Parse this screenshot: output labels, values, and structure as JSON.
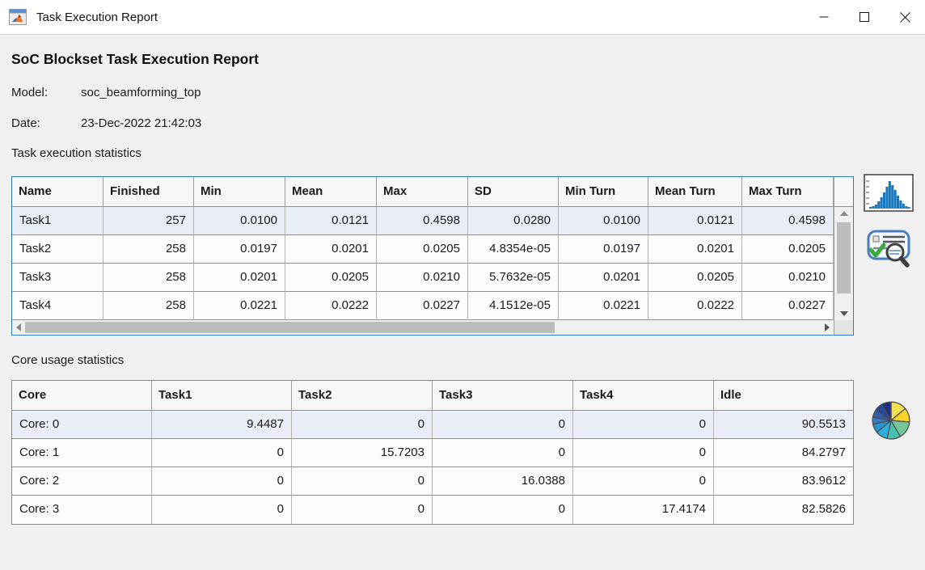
{
  "window": {
    "title": "Task Execution Report"
  },
  "report": {
    "title": "SoC Blockset Task Execution Report",
    "model_label": "Model:",
    "model_value": "soc_beamforming_top",
    "date_label": "Date:",
    "date_value": "23-Dec-2022 21:42:03"
  },
  "task_stats": {
    "section_label": "Task execution statistics",
    "columns": [
      "Name",
      "Finished",
      "Min",
      "Mean",
      "Max",
      "SD",
      "Min Turn",
      "Mean Turn",
      "Max Turn"
    ],
    "rows": [
      [
        "Task1",
        "257",
        "0.0100",
        "0.0121",
        "0.4598",
        "0.0280",
        "0.0100",
        "0.0121",
        "0.4598"
      ],
      [
        "Task2",
        "258",
        "0.0197",
        "0.0201",
        "0.0205",
        "4.8354e-05",
        "0.0197",
        "0.0201",
        "0.0205"
      ],
      [
        "Task3",
        "258",
        "0.0201",
        "0.0205",
        "0.0210",
        "5.7632e-05",
        "0.0201",
        "0.0205",
        "0.0210"
      ],
      [
        "Task4",
        "258",
        "0.0221",
        "0.0222",
        "0.0227",
        "4.1512e-05",
        "0.0221",
        "0.0222",
        "0.0227"
      ]
    ],
    "selected_row": 0
  },
  "core_stats": {
    "section_label": "Core usage statistics",
    "columns": [
      "Core",
      "Task1",
      "Task2",
      "Task3",
      "Task4",
      "Idle"
    ],
    "rows": [
      [
        "Core: 0",
        "9.4487",
        "0",
        "0",
        "0",
        "90.5513"
      ],
      [
        "Core: 1",
        "0",
        "15.7203",
        "0",
        "0",
        "84.2797"
      ],
      [
        "Core: 2",
        "0",
        "0",
        "16.0388",
        "0",
        "83.9612"
      ],
      [
        "Core: 3",
        "0",
        "0",
        "0",
        "17.4174",
        "82.5826"
      ]
    ],
    "selected_row": 0
  },
  "icons": {
    "app": "matlab-app-icon",
    "minimize": "minimize-icon",
    "maximize": "maximize-icon",
    "close": "close-icon",
    "histogram_button": "task-histogram-icon",
    "report_button": "report-inspect-icon",
    "pie_button": "core-usage-pie-icon",
    "scroll_arrows": "scroll-arrow-icons"
  },
  "colors": {
    "focus_border_blue": "#2d7dc1",
    "row_highlight": "#e9edf6",
    "histogram_bar_blue": "#1878be",
    "check_green": "#3da83d"
  }
}
